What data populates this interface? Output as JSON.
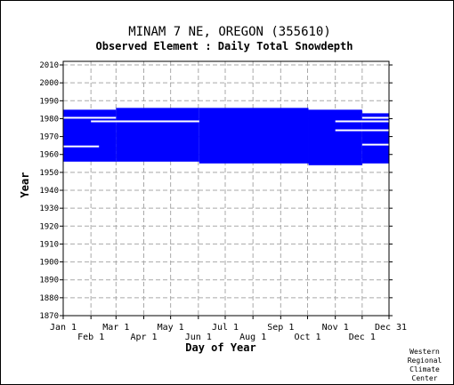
{
  "chart_data": {
    "type": "heatmap",
    "title": "MINAM 7 NE, OREGON   (355610)",
    "subtitle": "Observed Element : Daily Total Snowdepth",
    "xlabel": "Day of Year",
    "ylabel": "Year",
    "xlim": [
      1,
      365
    ],
    "ylim": [
      1870,
      2012
    ],
    "yticks": [
      1870,
      1880,
      1890,
      1900,
      1910,
      1920,
      1930,
      1940,
      1950,
      1960,
      1970,
      1980,
      1990,
      2000,
      2010
    ],
    "xticks_top_row": [
      {
        "label": "Jan 1",
        "day": 1
      },
      {
        "label": "Mar 1",
        "day": 60
      },
      {
        "label": "May 1",
        "day": 121
      },
      {
        "label": "Jul 1",
        "day": 182
      },
      {
        "label": "Sep 1",
        "day": 244
      },
      {
        "label": "Nov 1",
        "day": 305
      },
      {
        "label": "Dec 31",
        "day": 365
      }
    ],
    "xticks_bottom_row": [
      {
        "label": "Feb 1",
        "day": 32
      },
      {
        "label": "Apr 1",
        "day": 91
      },
      {
        "label": "Jun 1",
        "day": 152
      },
      {
        "label": "Aug 1",
        "day": 213
      },
      {
        "label": "Oct 1",
        "day": 274
      },
      {
        "label": "Dec 1",
        "day": 335
      }
    ],
    "grid": true,
    "series": [
      {
        "color": "#0000ff",
        "observed_blocks": [
          {
            "day_start": 1,
            "day_end": 59,
            "year_start": 1956,
            "year_end": 1984
          },
          {
            "day_start": 60,
            "day_end": 152,
            "year_start": 1956,
            "year_end": 1985
          },
          {
            "day_start": 153,
            "day_end": 274,
            "year_start": 1955,
            "year_end": 1985
          },
          {
            "day_start": 275,
            "day_end": 334,
            "year_start": 1954,
            "year_end": 1984
          },
          {
            "day_start": 335,
            "day_end": 365,
            "year_start": 1955,
            "year_end": 1982
          }
        ],
        "missing_lines": [
          {
            "day_start": 1,
            "day_end": 59,
            "year": 1980
          },
          {
            "day_start": 32,
            "day_end": 152,
            "year": 1978
          },
          {
            "day_start": 1,
            "day_end": 40,
            "year": 1964
          },
          {
            "day_start": 305,
            "day_end": 365,
            "year": 1978
          },
          {
            "day_start": 305,
            "day_end": 365,
            "year": 1973
          },
          {
            "day_start": 335,
            "day_end": 365,
            "year": 1980
          },
          {
            "day_start": 335,
            "day_end": 365,
            "year": 1965
          }
        ]
      }
    ]
  },
  "footer": {
    "credit_lines": [
      "Western",
      "Regional",
      "Climate",
      "Center"
    ]
  }
}
